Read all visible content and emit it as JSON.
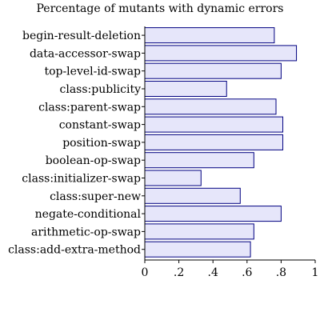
{
  "chart_data": {
    "type": "bar",
    "orientation": "horizontal",
    "title": "Percentage of mutants with dynamic errors",
    "xlabel": "",
    "ylabel": "",
    "xlim": [
      0,
      1
    ],
    "xticks": [
      0,
      0.2,
      0.4,
      0.6,
      0.8,
      1
    ],
    "xtick_labels": [
      "0",
      ".2",
      ".4",
      ".6",
      ".8",
      "1"
    ],
    "grid": false,
    "categories": [
      "begin-result-deletion",
      "data-accessor-swap",
      "top-level-id-swap",
      "class:publicity",
      "class:parent-swap",
      "constant-swap",
      "position-swap",
      "boolean-op-swap",
      "class:initializer-swap",
      "class:super-new",
      "negate-conditional",
      "arithmetic-op-swap",
      "class:add-extra-method"
    ],
    "values": [
      0.76,
      0.89,
      0.8,
      0.48,
      0.77,
      0.81,
      0.81,
      0.64,
      0.33,
      0.56,
      0.8,
      0.64,
      0.62
    ],
    "colors": {
      "bar_fill": "#e6e6fa",
      "bar_stroke": "#000080",
      "axis": "#000000"
    }
  }
}
